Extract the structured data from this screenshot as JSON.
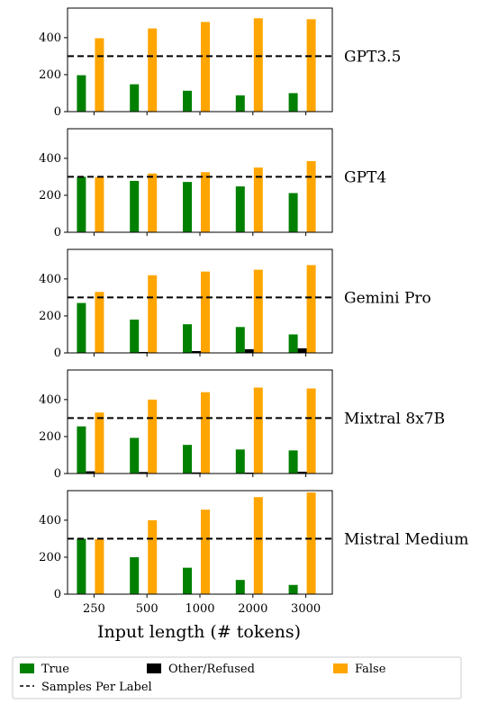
{
  "chart_data": {
    "type": "bar",
    "xlabel": "Input length (# tokens)",
    "categories": [
      "250",
      "500",
      "1000",
      "2000",
      "3000"
    ],
    "ylim": [
      0,
      560
    ],
    "yticks": [
      0,
      200,
      400
    ],
    "threshold": 300,
    "colors": {
      "True": "#008000",
      "Other/Refused": "#000000",
      "False": "#ffa500"
    },
    "panels": [
      {
        "model": "GPT3.5",
        "series": [
          {
            "name": "True",
            "values": [
              197,
              148,
              113,
              88,
              100
            ]
          },
          {
            "name": "Other/Refused",
            "values": [
              0,
              0,
              0,
              0,
              0
            ]
          },
          {
            "name": "False",
            "values": [
              397,
              450,
              485,
              505,
              500
            ]
          }
        ]
      },
      {
        "model": "GPT4",
        "series": [
          {
            "name": "True",
            "values": [
              300,
              278,
              272,
              248,
              212
            ]
          },
          {
            "name": "Other/Refused",
            "values": [
              0,
              0,
              0,
              0,
              0
            ]
          },
          {
            "name": "False",
            "values": [
              298,
              318,
              325,
              350,
              385
            ]
          }
        ]
      },
      {
        "model": "Gemini Pro",
        "series": [
          {
            "name": "True",
            "values": [
              270,
              180,
              155,
              140,
              100
            ]
          },
          {
            "name": "Other/Refused",
            "values": [
              0,
              5,
              10,
              20,
              25
            ]
          },
          {
            "name": "False",
            "values": [
              330,
              420,
              440,
              450,
              475
            ]
          }
        ]
      },
      {
        "model": "Mixtral 8x7B",
        "series": [
          {
            "name": "True",
            "values": [
              255,
              193,
              155,
              130,
              125
            ]
          },
          {
            "name": "Other/Refused",
            "values": [
              12,
              8,
              6,
              5,
              10
            ]
          },
          {
            "name": "False",
            "values": [
              330,
              400,
              440,
              465,
              460
            ]
          }
        ]
      },
      {
        "model": "Mistral Medium",
        "series": [
          {
            "name": "True",
            "values": [
              300,
              200,
              143,
              77,
              50
            ]
          },
          {
            "name": "Other/Refused",
            "values": [
              0,
              0,
              0,
              0,
              0
            ]
          },
          {
            "name": "False",
            "values": [
              298,
              400,
              457,
              525,
              550
            ]
          }
        ]
      }
    ],
    "legend": {
      "placement": "bottom",
      "items": [
        {
          "label": "True",
          "kind": "patch",
          "color": "#008000"
        },
        {
          "label": "Other/Refused",
          "kind": "patch",
          "color": "#000000"
        },
        {
          "label": "False",
          "kind": "patch",
          "color": "#ffa500"
        },
        {
          "label": "Samples Per Label",
          "kind": "dashed-line",
          "color": "#000000"
        }
      ]
    }
  }
}
